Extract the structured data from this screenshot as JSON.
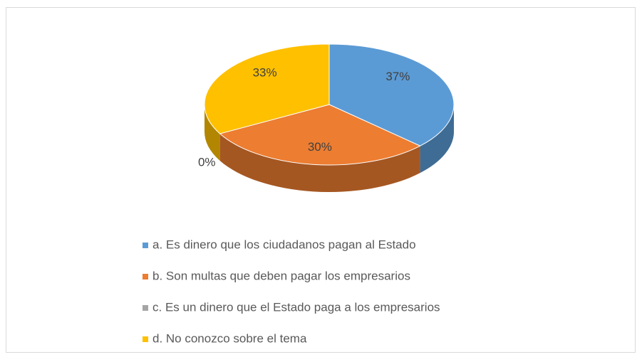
{
  "chart_data": {
    "type": "pie",
    "categories": [
      "a. Es dinero que los ciudadanos pagan al Estado",
      "b. Son multas que deben pagar los empresarios",
      "c. Es un dinero que el Estado paga a los empresarios",
      "d. No conozco sobre el tema"
    ],
    "values": [
      37,
      30,
      0,
      33
    ],
    "value_labels": [
      "37%",
      "30%",
      "0%",
      "33%"
    ],
    "colors": [
      "#5b9bd5",
      "#ed7d31",
      "#a5a5a5",
      "#ffc000"
    ],
    "legend": "bottom"
  }
}
